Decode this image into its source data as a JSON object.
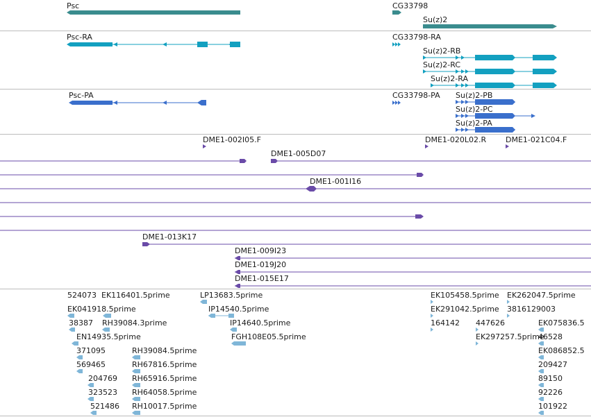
{
  "colors": {
    "gene": "#3a8c8e",
    "mrna": "#13a0c0",
    "protein": "#3a6fcc",
    "clone": "#6a4ba8",
    "est": "#7fb6d8",
    "separator": "#bcbcbc"
  },
  "tracks": {
    "genes": [
      "Psc",
      "CG33798",
      "Su(z)2"
    ],
    "transcripts": [
      "Psc-RA",
      "CG33798-RA",
      "Su(z)2-RB",
      "Su(z)2-RC",
      "Su(z)2-RA"
    ],
    "proteins": [
      "Psc-PA",
      "CG33798-PA",
      "Su(z)2-PB",
      "Su(z)2-PC",
      "Su(z)2-PA"
    ],
    "clones": [
      "DME1-002I05.F",
      "DME1-005D07",
      "DME1-020L02.R",
      "DME1-021C04.F",
      "DME1-001I16",
      "DME1-013K17",
      "DME1-009I23",
      "DME1-019J20",
      "DME1-015E17"
    ],
    "ests": [
      "524073",
      "EK116401.5prime",
      "EK041918.5prime",
      "38387",
      "RH39084.3prime",
      "EN14935.5prime",
      "371095",
      "RH39084.5prime",
      "569465",
      "RH67816.5prime",
      "204769",
      "RH65916.5prime",
      "323523",
      "RH64058.5prime",
      "521486",
      "RH10017.5prime",
      "LP13683.5prime",
      "IP14540.5prime",
      "IP14640.5prime",
      "FGH108E05.5prime",
      "EK105458.5prime",
      "EK262047.5prime",
      "EK291042.5prime",
      "3816129003",
      "164142",
      "447626",
      "EK075836.5",
      "EK297257.5prime",
      "46528",
      "EK086852.5",
      "209427",
      "89150",
      "92226",
      "101922"
    ]
  }
}
